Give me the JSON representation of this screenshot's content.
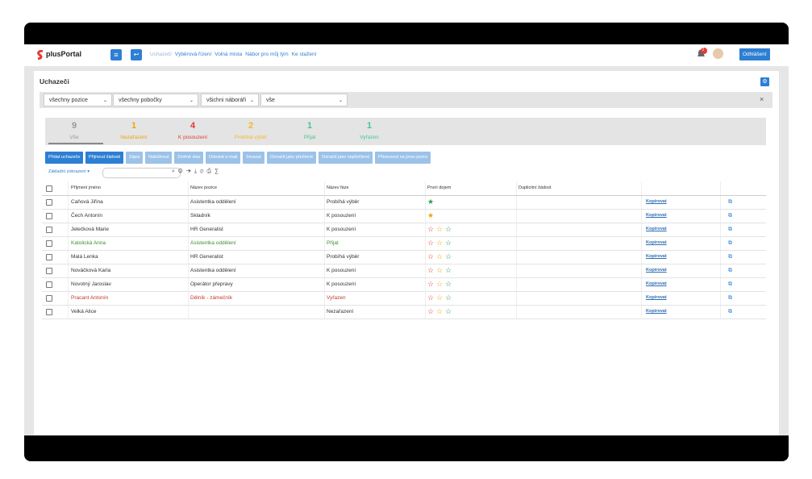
{
  "header": {
    "logo": "plusPortal",
    "nav": [
      "Uchazeči",
      "Výběrová řízení",
      "Volná místa",
      "Nábor pro můj tým",
      "Ke stažení"
    ],
    "notifications": "2",
    "logout": "Odhlášení"
  },
  "page": {
    "title": "Uchazeči"
  },
  "filters": [
    "všechny pozice",
    "všechny pobočky",
    "všichni náboráři",
    "vše"
  ],
  "stats": [
    {
      "count": "9",
      "label": "Vše",
      "color": "#999999"
    },
    {
      "count": "1",
      "label": "Nezařazení",
      "color": "#f0a30a"
    },
    {
      "count": "4",
      "label": "K posouzení",
      "color": "#e53935"
    },
    {
      "count": "2",
      "label": "Probíhá výběr",
      "color": "#f5b82e"
    },
    {
      "count": "1",
      "label": "Přijat",
      "color": "#4cc48a"
    },
    {
      "count": "1",
      "label": "Vyřazen",
      "color": "#3fc7a8"
    }
  ],
  "actions": [
    "Přidat uchazeče",
    "Přijmout žádosti",
    "Zápis",
    "Nabídnout",
    "Změnit stav",
    "Odeslat e-mail",
    "Smazat",
    "Označit jako přečtené",
    "Označit jako nepřečtené",
    "Přesunout na jinou pozici"
  ],
  "view": "Základní zobrazení",
  "table": {
    "columns": [
      "Příjmení jméno",
      "Název pozice",
      "Název fáze",
      "První dojem",
      "Duplicitní žádost"
    ],
    "rows": [
      {
        "name": "Caňová Jiřina",
        "position": "Asistentka oddělení",
        "phase": "Probíhá výběr",
        "impression_color": "#2e9e4f",
        "link": "Kopírovat",
        "color": "#333333"
      },
      {
        "name": "Čech Antonín",
        "position": "Skladník",
        "phase": "K posouzení",
        "impression_color": "#f0a30a",
        "link": "Kopírovat",
        "color": "#333333"
      },
      {
        "name": "Jelečková Marie",
        "position": "HR Generalist",
        "phase": "K posouzení",
        "impression_color": null,
        "link": "Kopírovat",
        "color": "#333333"
      },
      {
        "name": "Katolická Anna",
        "position": "Asistentka oddělení",
        "phase": "Přijat",
        "impression_color": null,
        "link": "Kopírovat",
        "color": "#3f8f2f"
      },
      {
        "name": "Malá Lenka",
        "position": "HR Generalist",
        "phase": "Probíhá výběr",
        "impression_color": null,
        "link": "Kopírovat",
        "color": "#333333"
      },
      {
        "name": "Nováčková Karla",
        "position": "Asistentka oddělení",
        "phase": "K posouzení",
        "impression_color": null,
        "link": "Kopírovat",
        "color": "#333333"
      },
      {
        "name": "Novotný Jaroslav",
        "position": "Operátor přepravy",
        "phase": "K posouzení",
        "impression_color": null,
        "link": "Kopírovat",
        "color": "#333333"
      },
      {
        "name": "Pracant Antonín",
        "position": "Dělník - zámečník",
        "phase": "Vyřazen",
        "impression_color": null,
        "link": "Kopírovat",
        "color": "#c0392b"
      },
      {
        "name": "Velká Alice",
        "position": "",
        "phase": "Nezařazení",
        "impression_color": null,
        "link": "Kopírovat",
        "color": "#333333"
      }
    ]
  }
}
